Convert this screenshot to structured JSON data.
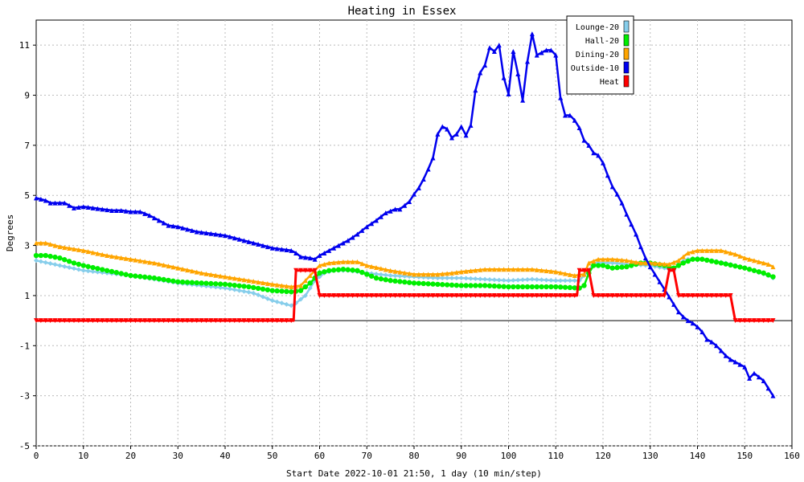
{
  "chart_data": {
    "type": "line",
    "title": "Heating in Essex",
    "xlabel": "Start Date 2022-10-01 21:50, 1 day (10 min/step)",
    "ylabel": "Degrees",
    "xlim": [
      0,
      160
    ],
    "ylim": [
      -5,
      12
    ],
    "xticks": [
      0,
      10,
      20,
      30,
      40,
      50,
      60,
      70,
      80,
      90,
      100,
      110,
      120,
      130,
      140,
      150,
      160
    ],
    "yticks": [
      -5,
      -3,
      -1,
      1,
      3,
      5,
      7,
      9,
      11
    ],
    "grid": true,
    "legend_position": "top-right",
    "reference_line_y": 0,
    "series": [
      {
        "name": "Lounge-20",
        "color": "#87ceeb",
        "marker": "diamond",
        "points": [
          [
            0,
            2.4
          ],
          [
            5,
            2.2
          ],
          [
            10,
            2.0
          ],
          [
            20,
            1.8
          ],
          [
            30,
            1.5
          ],
          [
            40,
            1.3
          ],
          [
            46,
            1.1
          ],
          [
            50,
            0.8
          ],
          [
            54,
            0.6
          ],
          [
            55,
            0.7
          ],
          [
            57,
            1.0
          ],
          [
            59,
            1.6
          ],
          [
            61,
            1.9
          ],
          [
            63,
            2.0
          ],
          [
            66,
            2.0
          ],
          [
            70,
            1.9
          ],
          [
            75,
            1.8
          ],
          [
            80,
            1.75
          ],
          [
            85,
            1.7
          ],
          [
            90,
            1.7
          ],
          [
            95,
            1.65
          ],
          [
            100,
            1.6
          ],
          [
            105,
            1.65
          ],
          [
            110,
            1.6
          ],
          [
            115,
            1.6
          ],
          [
            117,
            2.0
          ],
          [
            118,
            2.3
          ],
          [
            122,
            2.3
          ],
          [
            125,
            2.25
          ],
          [
            130,
            2.2
          ],
          [
            133,
            2.1
          ],
          [
            135,
            2.0
          ],
          [
            136,
            2.3
          ],
          [
            138,
            2.45
          ],
          [
            140,
            2.5
          ],
          [
            143,
            2.4
          ],
          [
            146,
            2.3
          ],
          [
            150,
            2.1
          ],
          [
            155,
            1.8
          ],
          [
            156,
            1.7
          ]
        ]
      },
      {
        "name": "Hall-20",
        "color": "#00ee00",
        "marker": "circle",
        "points": [
          [
            0,
            2.6
          ],
          [
            2,
            2.6
          ],
          [
            5,
            2.5
          ],
          [
            8,
            2.3
          ],
          [
            10,
            2.2
          ],
          [
            15,
            2.0
          ],
          [
            20,
            1.8
          ],
          [
            25,
            1.7
          ],
          [
            30,
            1.55
          ],
          [
            35,
            1.5
          ],
          [
            40,
            1.45
          ],
          [
            45,
            1.35
          ],
          [
            50,
            1.2
          ],
          [
            54,
            1.15
          ],
          [
            56,
            1.2
          ],
          [
            58,
            1.5
          ],
          [
            60,
            1.9
          ],
          [
            62,
            2.0
          ],
          [
            65,
            2.05
          ],
          [
            68,
            2.0
          ],
          [
            70,
            1.85
          ],
          [
            72,
            1.7
          ],
          [
            75,
            1.6
          ],
          [
            80,
            1.5
          ],
          [
            85,
            1.45
          ],
          [
            90,
            1.4
          ],
          [
            95,
            1.4
          ],
          [
            100,
            1.35
          ],
          [
            105,
            1.35
          ],
          [
            110,
            1.35
          ],
          [
            115,
            1.3
          ],
          [
            116,
            1.4
          ],
          [
            117,
            1.9
          ],
          [
            118,
            2.2
          ],
          [
            120,
            2.2
          ],
          [
            122,
            2.1
          ],
          [
            125,
            2.15
          ],
          [
            128,
            2.3
          ],
          [
            130,
            2.3
          ],
          [
            133,
            2.2
          ],
          [
            135,
            2.1
          ],
          [
            137,
            2.3
          ],
          [
            139,
            2.45
          ],
          [
            141,
            2.45
          ],
          [
            145,
            2.3
          ],
          [
            150,
            2.1
          ],
          [
            154,
            1.9
          ],
          [
            156,
            1.75
          ]
        ]
      },
      {
        "name": "Dining-20",
        "color": "#ffa500",
        "marker": "triangle-up",
        "points": [
          [
            0,
            3.1
          ],
          [
            2,
            3.1
          ],
          [
            5,
            2.95
          ],
          [
            10,
            2.8
          ],
          [
            15,
            2.6
          ],
          [
            20,
            2.45
          ],
          [
            25,
            2.3
          ],
          [
            30,
            2.1
          ],
          [
            35,
            1.9
          ],
          [
            40,
            1.75
          ],
          [
            45,
            1.6
          ],
          [
            50,
            1.45
          ],
          [
            54,
            1.35
          ],
          [
            56,
            1.4
          ],
          [
            58,
            1.8
          ],
          [
            60,
            2.2
          ],
          [
            62,
            2.3
          ],
          [
            65,
            2.35
          ],
          [
            68,
            2.35
          ],
          [
            70,
            2.2
          ],
          [
            75,
            2.0
          ],
          [
            80,
            1.85
          ],
          [
            85,
            1.85
          ],
          [
            88,
            1.9
          ],
          [
            90,
            1.95
          ],
          [
            95,
            2.05
          ],
          [
            100,
            2.05
          ],
          [
            105,
            2.05
          ],
          [
            110,
            1.95
          ],
          [
            114,
            1.8
          ],
          [
            116,
            1.85
          ],
          [
            117,
            2.3
          ],
          [
            119,
            2.45
          ],
          [
            122,
            2.45
          ],
          [
            125,
            2.4
          ],
          [
            128,
            2.3
          ],
          [
            130,
            2.3
          ],
          [
            134,
            2.25
          ],
          [
            136,
            2.4
          ],
          [
            138,
            2.7
          ],
          [
            140,
            2.8
          ],
          [
            145,
            2.8
          ],
          [
            148,
            2.65
          ],
          [
            150,
            2.5
          ],
          [
            155,
            2.25
          ],
          [
            156,
            2.15
          ]
        ]
      },
      {
        "name": "Outside-10",
        "color": "#0000ee",
        "marker": "triangle-up",
        "points": [
          [
            0,
            4.9
          ],
          [
            2,
            4.8
          ],
          [
            3,
            4.7
          ],
          [
            6,
            4.7
          ],
          [
            7,
            4.6
          ],
          [
            8,
            4.5
          ],
          [
            10,
            4.55
          ],
          [
            12,
            4.5
          ],
          [
            14,
            4.45
          ],
          [
            16,
            4.4
          ],
          [
            18,
            4.4
          ],
          [
            20,
            4.35
          ],
          [
            22,
            4.35
          ],
          [
            24,
            4.2
          ],
          [
            26,
            4.0
          ],
          [
            27,
            3.9
          ],
          [
            28,
            3.8
          ],
          [
            30,
            3.75
          ],
          [
            32,
            3.65
          ],
          [
            34,
            3.55
          ],
          [
            36,
            3.5
          ],
          [
            38,
            3.45
          ],
          [
            40,
            3.4
          ],
          [
            42,
            3.3
          ],
          [
            44,
            3.2
          ],
          [
            46,
            3.1
          ],
          [
            48,
            3.0
          ],
          [
            50,
            2.9
          ],
          [
            52,
            2.85
          ],
          [
            54,
            2.8
          ],
          [
            55,
            2.7
          ],
          [
            56,
            2.55
          ],
          [
            58,
            2.5
          ],
          [
            59,
            2.45
          ],
          [
            60,
            2.6
          ],
          [
            62,
            2.8
          ],
          [
            64,
            3.0
          ],
          [
            66,
            3.2
          ],
          [
            68,
            3.45
          ],
          [
            70,
            3.75
          ],
          [
            72,
            4.0
          ],
          [
            74,
            4.3
          ],
          [
            76,
            4.45
          ],
          [
            77,
            4.45
          ],
          [
            78,
            4.6
          ],
          [
            79,
            4.75
          ],
          [
            80,
            5.05
          ],
          [
            81,
            5.3
          ],
          [
            82,
            5.65
          ],
          [
            83,
            6.05
          ],
          [
            84,
            6.5
          ],
          [
            85,
            7.45
          ],
          [
            86,
            7.75
          ],
          [
            87,
            7.65
          ],
          [
            88,
            7.3
          ],
          [
            89,
            7.45
          ],
          [
            90,
            7.75
          ],
          [
            91,
            7.4
          ],
          [
            92,
            7.8
          ],
          [
            93,
            9.2
          ],
          [
            94,
            9.9
          ],
          [
            95,
            10.2
          ],
          [
            96,
            10.9
          ],
          [
            97,
            10.75
          ],
          [
            98,
            11.0
          ],
          [
            99,
            9.7
          ],
          [
            100,
            9.05
          ],
          [
            101,
            10.75
          ],
          [
            102,
            9.85
          ],
          [
            103,
            8.8
          ],
          [
            104,
            10.35
          ],
          [
            105,
            11.45
          ],
          [
            106,
            10.6
          ],
          [
            107,
            10.7
          ],
          [
            108,
            10.8
          ],
          [
            109,
            10.8
          ],
          [
            110,
            10.6
          ],
          [
            111,
            8.9
          ],
          [
            112,
            8.2
          ],
          [
            113,
            8.2
          ],
          [
            114,
            8.0
          ],
          [
            115,
            7.7
          ],
          [
            116,
            7.2
          ],
          [
            117,
            7.0
          ],
          [
            118,
            6.7
          ],
          [
            119,
            6.6
          ],
          [
            120,
            6.3
          ],
          [
            121,
            5.8
          ],
          [
            122,
            5.35
          ],
          [
            123,
            5.05
          ],
          [
            124,
            4.7
          ],
          [
            125,
            4.25
          ],
          [
            126,
            3.85
          ],
          [
            127,
            3.45
          ],
          [
            128,
            2.95
          ],
          [
            129,
            2.5
          ],
          [
            130,
            2.15
          ],
          [
            131,
            1.85
          ],
          [
            132,
            1.55
          ],
          [
            133,
            1.25
          ],
          [
            134,
            0.95
          ],
          [
            135,
            0.65
          ],
          [
            136,
            0.35
          ],
          [
            137,
            0.15
          ],
          [
            138,
            0.0
          ],
          [
            139,
            -0.1
          ],
          [
            140,
            -0.25
          ],
          [
            141,
            -0.45
          ],
          [
            142,
            -0.75
          ],
          [
            143,
            -0.85
          ],
          [
            144,
            -1.0
          ],
          [
            145,
            -1.2
          ],
          [
            146,
            -1.4
          ],
          [
            147,
            -1.55
          ],
          [
            148,
            -1.65
          ],
          [
            149,
            -1.75
          ],
          [
            150,
            -1.85
          ],
          [
            151,
            -2.3
          ],
          [
            152,
            -2.1
          ],
          [
            153,
            -2.25
          ],
          [
            154,
            -2.4
          ],
          [
            155,
            -2.7
          ],
          [
            156,
            -3.0
          ]
        ]
      },
      {
        "name": "Heat",
        "color": "#ff0000",
        "marker": "triangle-down",
        "points": [
          [
            0,
            0
          ],
          [
            54.5,
            0
          ],
          [
            55,
            2
          ],
          [
            59,
            2
          ],
          [
            60,
            1
          ],
          [
            114.5,
            1
          ],
          [
            115,
            2
          ],
          [
            117,
            2
          ],
          [
            118,
            1
          ],
          [
            132.5,
            1
          ],
          [
            133,
            1
          ],
          [
            134,
            2
          ],
          [
            135,
            2
          ],
          [
            136,
            1
          ],
          [
            147,
            1
          ],
          [
            148,
            0
          ],
          [
            156,
            0
          ]
        ]
      }
    ]
  }
}
